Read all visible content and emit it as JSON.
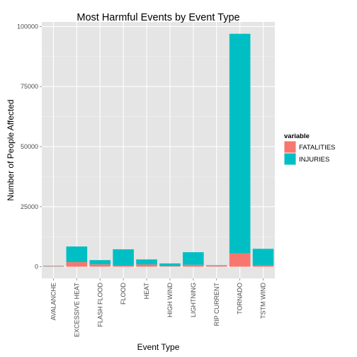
{
  "chart_data": {
    "type": "bar",
    "stacked": true,
    "title": "Most Harmful Events by Event Type",
    "xlabel": "Event Type",
    "ylabel": "Number of People Affected",
    "categories": [
      "AVALANCHE",
      "EXCESSIVE HEAT",
      "FLASH FLOOD",
      "FLOOD",
      "HEAT",
      "HIGH WIND",
      "LIGHTNING",
      "RIP CURRENT",
      "TORNADO",
      "TSTM WIND"
    ],
    "series": [
      {
        "name": "FATALITIES",
        "color": "#F8766D",
        "values": [
          224,
          1903,
          978,
          470,
          937,
          248,
          816,
          368,
          5633,
          504
        ]
      },
      {
        "name": "INJURIES",
        "color": "#00BFC4",
        "values": [
          170,
          6525,
          1777,
          6789,
          2100,
          1137,
          5230,
          232,
          91346,
          6957
        ]
      }
    ],
    "yticks": [
      0,
      25000,
      50000,
      75000,
      100000
    ],
    "ytick_labels": [
      "0",
      "25000",
      "50000",
      "75000",
      "100000"
    ],
    "ylim": [
      -4850,
      101900
    ],
    "grid": true,
    "legend": {
      "title": "variable",
      "position": "right"
    }
  }
}
